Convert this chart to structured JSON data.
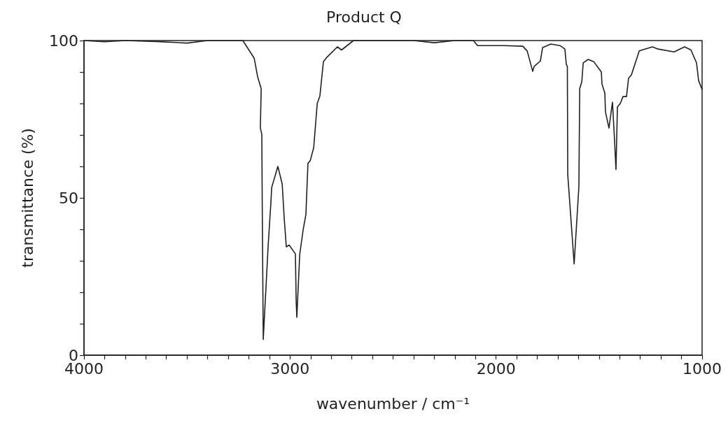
{
  "chart_data": {
    "type": "line",
    "title": "Product Q",
    "xlabel": "wavenumber / cm⁻¹",
    "ylabel": "transmittance (%)",
    "series": [
      {
        "color": "#231f20",
        "x": [
          4000,
          3900,
          3800,
          3650,
          3500,
          3400,
          3229,
          3174,
          3157,
          3140,
          3144,
          3137,
          3135,
          3130,
          3106,
          3093,
          3089,
          3059,
          3038,
          3028,
          3018,
          3004,
          2974,
          2970,
          2967,
          2953,
          2936,
          2923,
          2913,
          2902,
          2885,
          2868,
          2855,
          2838,
          2821,
          2770,
          2750,
          2692,
          2400,
          2300,
          2200,
          2110,
          2090,
          1961,
          1870,
          1849,
          1822,
          1815,
          1785,
          1774,
          1734,
          1690,
          1666,
          1659,
          1654,
          1652,
          1621,
          1598,
          1594,
          1584,
          1577,
          1553,
          1526,
          1489,
          1486,
          1472,
          1469,
          1452,
          1435,
          1425,
          1418,
          1411,
          1397,
          1384,
          1367,
          1357,
          1343,
          1305,
          1241,
          1214,
          1136,
          1085,
          1054,
          1027,
          1017,
          1000
        ],
        "values": [
          100,
          99.6,
          100,
          99.7,
          99.2,
          100,
          100,
          94.4,
          88.4,
          84.7,
          72.2,
          70.2,
          49,
          5,
          35,
          48.4,
          53.3,
          60,
          54.4,
          43.3,
          34.4,
          35,
          32.2,
          16.7,
          12,
          32,
          40,
          44.7,
          61,
          61.8,
          66,
          80,
          82.4,
          93.3,
          94.7,
          98,
          97,
          100,
          100,
          99.3,
          100,
          100,
          98.4,
          98.4,
          98.2,
          96.7,
          90.2,
          91.8,
          93.5,
          97.8,
          98.9,
          98.4,
          97.3,
          92.4,
          91.8,
          57.3,
          29,
          53.6,
          84.7,
          86.9,
          92.9,
          94,
          93.3,
          90,
          86.2,
          83.3,
          77.3,
          72.2,
          80.4,
          68.4,
          59,
          78.9,
          80,
          82.2,
          82.2,
          88,
          89.1,
          96.7,
          98,
          97.3,
          96.4,
          98,
          97,
          92.9,
          87.3,
          84.4
        ]
      }
    ],
    "xlim": [
      4000,
      1000
    ],
    "xticks": [
      4000,
      {
        "value": 3900,
        "label": null
      },
      {
        "value": 3800,
        "label": null
      },
      {
        "value": 3700,
        "label": null
      },
      {
        "value": 3600,
        "label": null
      },
      {
        "value": 3500,
        "label": null
      },
      {
        "value": 3400,
        "label": null
      },
      {
        "value": 3300,
        "label": null
      },
      {
        "value": 3200,
        "label": null
      },
      {
        "value": 3100,
        "label": null
      },
      3000,
      {
        "value": 2900,
        "label": null
      },
      {
        "value": 2800,
        "label": null
      },
      {
        "value": 2700,
        "label": null
      },
      {
        "value": 2600,
        "label": null
      },
      {
        "value": 2500,
        "label": null
      },
      {
        "value": 2400,
        "label": null
      },
      {
        "value": 2300,
        "label": null
      },
      {
        "value": 2200,
        "label": null
      },
      {
        "value": 2100,
        "label": null
      },
      2000,
      {
        "value": 1900,
        "label": null
      },
      {
        "value": 1800,
        "label": null
      },
      {
        "value": 1700,
        "label": null
      },
      {
        "value": 1600,
        "label": null
      },
      {
        "value": 1500,
        "label": null
      },
      {
        "value": 1400,
        "label": null
      },
      {
        "value": 1300,
        "label": null
      },
      {
        "value": 1200,
        "label": null
      },
      {
        "value": 1100,
        "label": null
      },
      1000
    ],
    "ylim": [
      0,
      100
    ],
    "yticks": [
      0,
      {
        "value": 10,
        "label": null
      },
      {
        "value": 20,
        "label": null
      },
      {
        "value": 30,
        "label": null
      },
      {
        "value": 40,
        "label": null
      },
      50,
      {
        "value": 60,
        "label": null
      },
      {
        "value": 70,
        "label": null
      },
      {
        "value": 80,
        "label": null
      },
      {
        "value": 90,
        "label": null
      },
      100
    ],
    "line_style": "solid"
  }
}
